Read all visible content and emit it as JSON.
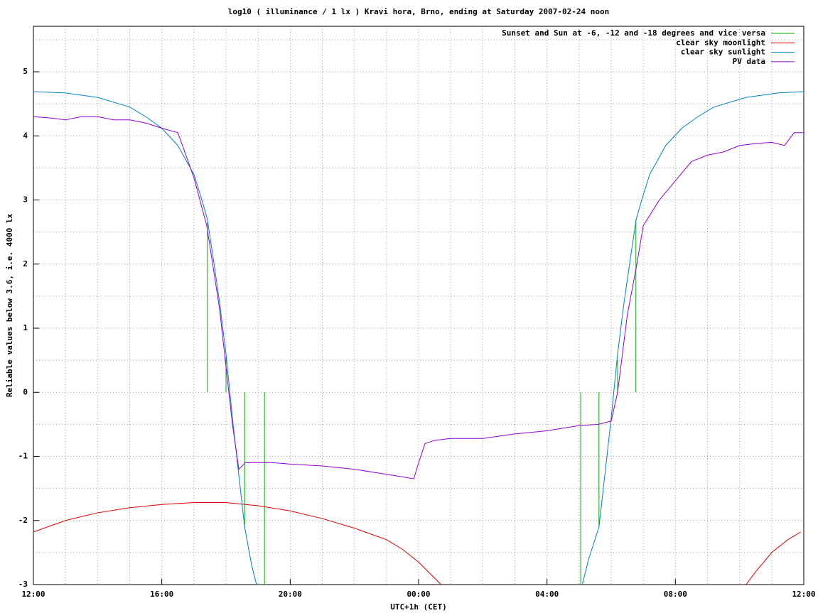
{
  "chart_data": {
    "type": "line",
    "title": "log10 ( illuminance / 1 lx ) Kravi hora, Brno, ending at Saturday 2007-02-24 noon",
    "xlabel": "UTC+1h (CET)",
    "ylabel": "Reliable values below 3.6, i.e. 4000 lx",
    "xlim": [
      0,
      24
    ],
    "ylim": [
      -3,
      5.71
    ],
    "xticks": [
      {
        "value": 0,
        "label": "12:00"
      },
      {
        "value": 4,
        "label": "16:00"
      },
      {
        "value": 8,
        "label": "20:00"
      },
      {
        "value": 12,
        "label": "00:00"
      },
      {
        "value": 16,
        "label": "04:00"
      },
      {
        "value": 20,
        "label": "08:00"
      },
      {
        "value": 24,
        "label": "12:00"
      }
    ],
    "yticks": [
      -3,
      -2,
      -1,
      0,
      1,
      2,
      3,
      4,
      5
    ],
    "minor_xticks": [
      1,
      2,
      3,
      5,
      6,
      7,
      9,
      10,
      11,
      13,
      14,
      15,
      17,
      18,
      19,
      21,
      22,
      23
    ],
    "minor_yticks": [
      -2.5,
      -1.5,
      -0.5,
      0.5,
      1.5,
      2.5,
      3.5,
      4.5,
      5.5
    ],
    "grid": true,
    "legend": "top-right",
    "series": [
      {
        "name": "Sunset and Sun at -6, -12 and -18 degrees and vice versa",
        "color": "#00b000",
        "x": [
          5.42,
          5.42,
          5.42,
          6.0,
          6.0,
          6.0,
          6.58,
          6.58,
          6.58,
          7.2,
          7.2,
          7.2,
          17.05,
          17.05,
          17.05,
          17.62,
          17.62,
          17.62,
          18.2,
          18.2,
          18.2,
          18.77,
          18.77
        ],
        "values": [
          0,
          2.65,
          null,
          0,
          0.55,
          null,
          0,
          -2.1,
          null,
          0,
          -3,
          null,
          0,
          -3,
          null,
          0,
          -2.1,
          null,
          0,
          0.5,
          null,
          0,
          2.7
        ]
      },
      {
        "name": "clear sky moonlight",
        "color": "#e00000",
        "x": [
          0,
          1,
          2,
          3,
          4,
          5,
          6,
          7,
          8,
          9,
          10,
          11,
          11.5,
          12,
          12.5,
          12.7,
          13,
          22.2,
          22.5,
          23,
          23.5,
          23.9
        ],
        "values": [
          -2.18,
          -2.0,
          -1.88,
          -1.8,
          -1.75,
          -1.72,
          -1.72,
          -1.77,
          -1.85,
          -1.97,
          -2.12,
          -2.3,
          -2.45,
          -2.65,
          -2.9,
          -3,
          null,
          -3,
          -2.8,
          -2.5,
          -2.3,
          -2.18
        ]
      },
      {
        "name": "clear sky sunlight",
        "color": "#0080c0",
        "x": [
          0,
          1,
          2,
          3,
          3.5,
          4,
          4.5,
          5,
          5.25,
          5.42,
          5.6,
          5.8,
          6.0,
          6.2,
          6.4,
          6.58,
          6.8,
          6.95,
          12,
          17.1,
          17.3,
          17.62,
          17.8,
          18.0,
          18.2,
          18.4,
          18.6,
          18.78,
          18.95,
          19.2,
          19.7,
          20.2,
          20.7,
          21.2,
          22.2,
          23.2,
          24
        ],
        "values": [
          4.69,
          4.67,
          4.6,
          4.45,
          4.3,
          4.12,
          3.85,
          3.4,
          3.0,
          2.7,
          2.1,
          1.4,
          0.6,
          -0.4,
          -1.3,
          -2.1,
          -2.7,
          -3,
          null,
          -3,
          -2.6,
          -2.1,
          -1.3,
          -0.4,
          0.6,
          1.4,
          2.1,
          2.7,
          3.0,
          3.4,
          3.85,
          4.12,
          4.3,
          4.45,
          4.6,
          4.67,
          4.69
        ]
      },
      {
        "name": "PV data",
        "color": "#9400d3",
        "x": [
          0,
          0.5,
          1,
          1.5,
          2,
          2.5,
          3,
          3.5,
          4,
          4.5,
          5,
          5.4,
          5.8,
          6.0,
          6.2,
          6.4,
          6.6,
          7,
          7.5,
          8,
          9,
          10,
          11,
          11.5,
          11.85,
          12,
          12.2,
          12.5,
          13,
          14,
          15,
          16,
          17,
          17.6,
          18,
          18.2,
          18.5,
          18.8,
          19,
          19.5,
          20,
          20.5,
          21,
          21.5,
          22,
          22.5,
          23,
          23.4,
          23.7,
          24
        ],
        "values": [
          4.3,
          4.28,
          4.25,
          4.3,
          4.3,
          4.25,
          4.25,
          4.2,
          4.12,
          4.05,
          3.35,
          2.6,
          1.3,
          0.4,
          -0.5,
          -1.2,
          -1.1,
          -1.1,
          -1.1,
          -1.12,
          -1.15,
          -1.2,
          -1.28,
          -1.32,
          -1.35,
          -1.1,
          -0.8,
          -0.75,
          -0.72,
          -0.72,
          -0.65,
          -0.6,
          -0.52,
          -0.5,
          -0.45,
          0,
          1.2,
          2.0,
          2.6,
          3.0,
          3.3,
          3.6,
          3.7,
          3.75,
          3.85,
          3.88,
          3.9,
          3.85,
          4.05,
          4.05
        ]
      }
    ]
  }
}
